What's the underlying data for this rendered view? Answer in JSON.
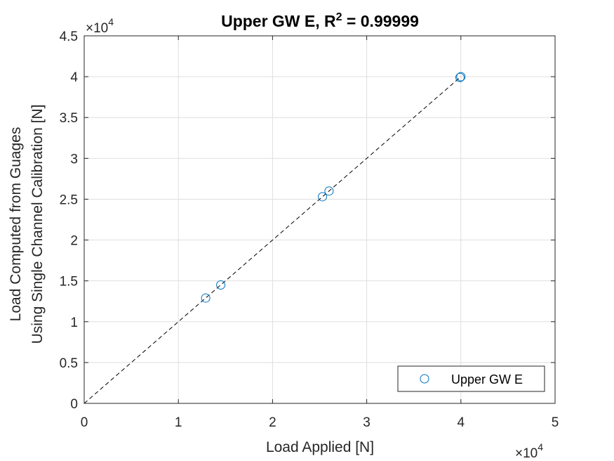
{
  "chart_data": {
    "type": "scatter",
    "title_main": "Upper GW E, R",
    "title_sup": "2",
    "title_tail": " = 0.99999",
    "xlabel": "Load Applied [N]",
    "ylabel_line1": "Load Computed from Guages",
    "ylabel_line2": "Using Single Channel Calibration [N]",
    "x_exponent_base": "×10",
    "x_exponent_power": "4",
    "y_exponent_base": "×10",
    "y_exponent_power": "4",
    "xlim": [
      0,
      50000
    ],
    "ylim": [
      0,
      45000
    ],
    "xticks": [
      0,
      10000,
      20000,
      30000,
      40000,
      50000
    ],
    "xtick_labels": [
      "0",
      "1",
      "2",
      "3",
      "4",
      "5"
    ],
    "yticks": [
      0,
      5000,
      10000,
      15000,
      20000,
      25000,
      30000,
      35000,
      40000,
      45000
    ],
    "ytick_labels": [
      "0",
      "0.5",
      "1",
      "1.5",
      "2",
      "2.5",
      "3",
      "3.5",
      "4",
      "4.5"
    ],
    "grid": true,
    "legend_position": "bottom-right",
    "series": [
      {
        "name": "Upper GW E",
        "marker": "circle",
        "color": "#0072BD",
        "points": [
          {
            "x": 12900,
            "y": 12900
          },
          {
            "x": 14500,
            "y": 14500
          },
          {
            "x": 25300,
            "y": 25300
          },
          {
            "x": 26000,
            "y": 26000
          },
          {
            "x": 39900,
            "y": 39900
          },
          {
            "x": 40000,
            "y": 40000
          }
        ]
      }
    ],
    "reference_line": {
      "style": "dashed",
      "color": "#000000",
      "x": [
        0,
        40000
      ],
      "y": [
        0,
        40000
      ]
    }
  }
}
